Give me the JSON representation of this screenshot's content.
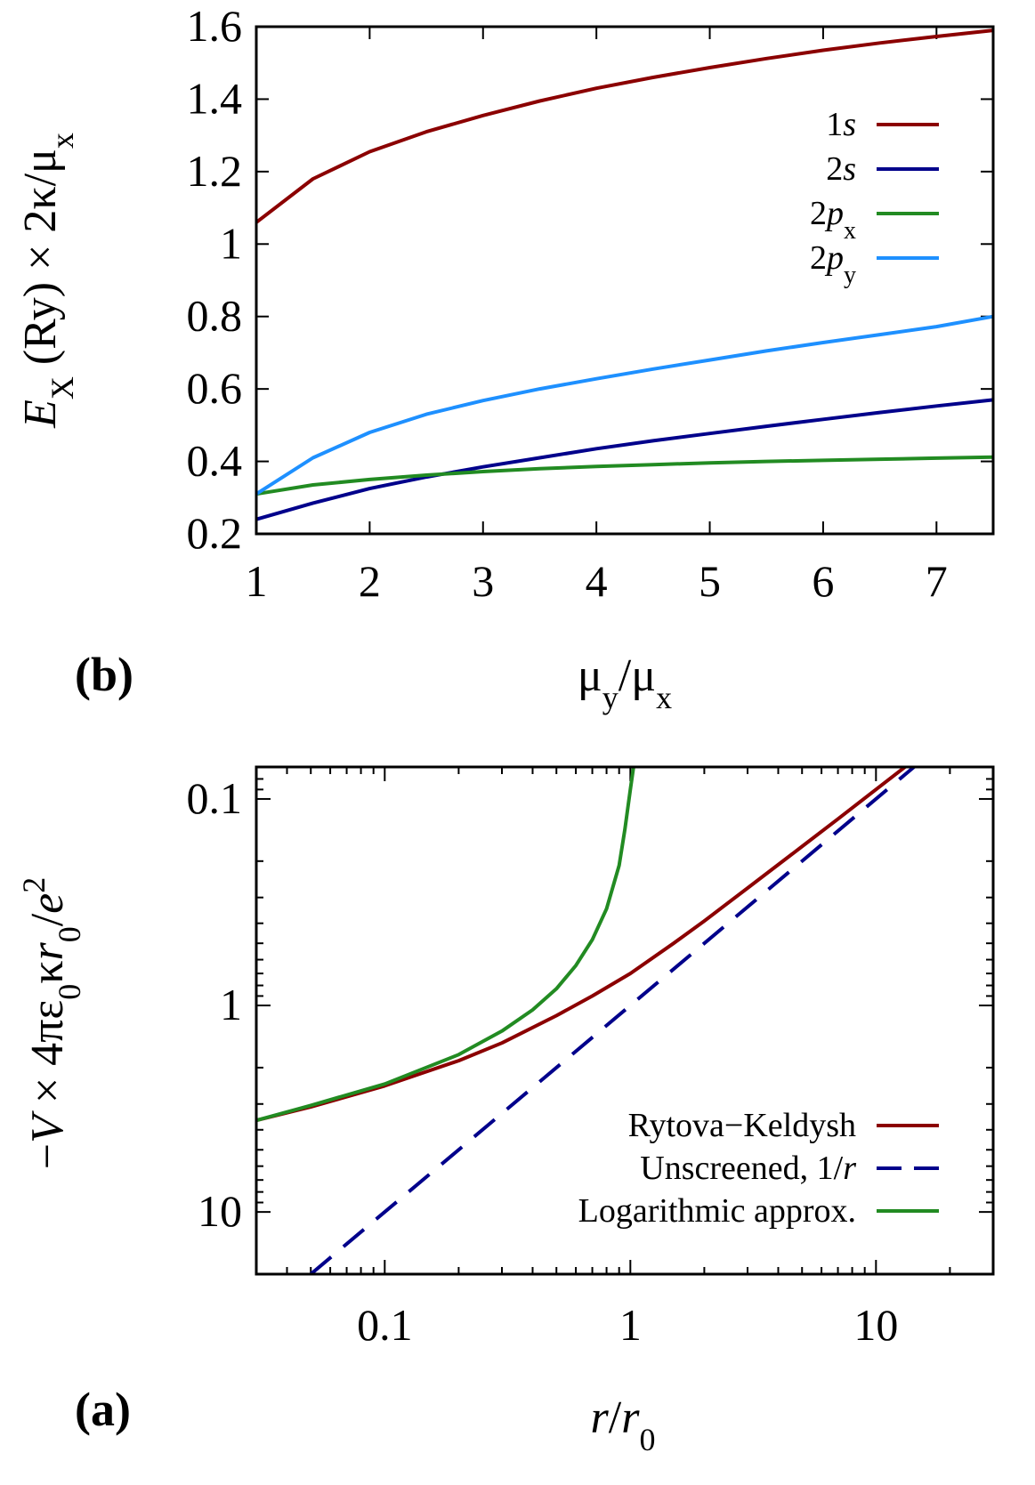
{
  "chart_data": [
    {
      "panel": "(b)",
      "type": "line",
      "xlabel_html": "μ<tspan baseline-shift='sub' font-size='36'>y</tspan>/μ<tspan baseline-shift='sub' font-size='36'>x</tspan>",
      "xlabel": "μy/μx",
      "ylabel": "EX (Ry) × 2κ/μx",
      "xlim": [
        1,
        7.5
      ],
      "ylim": [
        0.2,
        1.6
      ],
      "xticks": [
        1,
        2,
        3,
        4,
        5,
        6,
        7
      ],
      "xtick_labels": [
        "1",
        "2",
        "3",
        "4",
        "5",
        "6",
        "7"
      ],
      "yticks": [
        0.2,
        0.4,
        0.6,
        0.8,
        1.0,
        1.2,
        1.4,
        1.6
      ],
      "ytick_labels": [
        "0.2",
        "0.4",
        "0.6",
        "0.8",
        "1",
        "1.2",
        "1.4",
        "1.6"
      ],
      "legend_position": "top-right",
      "series": [
        {
          "name": "1s",
          "color": "#8b0000",
          "x": [
            1,
            1.5,
            2,
            2.5,
            3,
            3.5,
            4,
            4.5,
            5,
            5.5,
            6,
            6.5,
            7,
            7.5
          ],
          "y": [
            1.06,
            1.18,
            1.255,
            1.31,
            1.355,
            1.395,
            1.43,
            1.46,
            1.487,
            1.512,
            1.535,
            1.555,
            1.573,
            1.59
          ]
        },
        {
          "name": "2s",
          "color": "#00008b",
          "x": [
            1,
            1.5,
            2,
            2.5,
            3,
            3.5,
            4,
            4.5,
            5,
            5.5,
            6,
            6.5,
            7,
            7.5
          ],
          "y": [
            0.24,
            0.285,
            0.325,
            0.357,
            0.385,
            0.41,
            0.435,
            0.457,
            0.477,
            0.497,
            0.516,
            0.535,
            0.553,
            0.57
          ]
        },
        {
          "name": "2px",
          "color": "#228b22",
          "x": [
            1,
            1.5,
            2,
            2.5,
            3,
            3.5,
            4,
            4.5,
            5,
            5.5,
            6,
            6.5,
            7,
            7.5
          ],
          "y": [
            0.31,
            0.335,
            0.35,
            0.362,
            0.372,
            0.38,
            0.386,
            0.391,
            0.396,
            0.4,
            0.403,
            0.406,
            0.409,
            0.412
          ]
        },
        {
          "name": "2py",
          "color": "#1e90ff",
          "x": [
            1,
            1.5,
            2,
            2.5,
            3,
            3.5,
            4,
            4.5,
            5,
            5.5,
            6,
            6.5,
            7,
            7.5
          ],
          "y": [
            0.31,
            0.41,
            0.48,
            0.53,
            0.568,
            0.6,
            0.628,
            0.655,
            0.68,
            0.705,
            0.728,
            0.75,
            0.772,
            0.8
          ]
        }
      ]
    },
    {
      "panel": "(a)",
      "type": "line",
      "xlabel": "r/r0",
      "ylabel": "−V × 4πε0κr0/e2",
      "xscale": "log",
      "yscale": "log",
      "y_inverted": true,
      "xlim": [
        0.03,
        30
      ],
      "ylim": [
        0.07,
        20
      ],
      "xticks": [
        0.1,
        1,
        10
      ],
      "xtick_labels": [
        "0.1",
        "1",
        "10"
      ],
      "yticks": [
        0.1,
        1,
        10
      ],
      "ytick_labels": [
        "0.1",
        "1",
        "10"
      ],
      "legend_position": "bottom-right",
      "series": [
        {
          "name": "Rytova−Keldysh",
          "color": "#8b0000",
          "dash": "solid",
          "x": [
            0.03,
            0.05,
            0.1,
            0.2,
            0.3,
            0.5,
            0.7,
            1,
            1.5,
            2,
            3,
            5,
            7,
            10,
            14
          ],
          "y": [
            3.6,
            3.1,
            2.45,
            1.85,
            1.52,
            1.12,
            0.9,
            0.7,
            0.5,
            0.39,
            0.27,
            0.17,
            0.125,
            0.09,
            0.066
          ]
        },
        {
          "name": "Unscreened, 1/r",
          "color": "#00008b",
          "dash": "dashed",
          "x": [
            0.05,
            15
          ],
          "y": [
            20,
            0.0667
          ]
        },
        {
          "name": "Logarithmic approx.",
          "color": "#228b22",
          "dash": "solid",
          "x": [
            0.03,
            0.05,
            0.1,
            0.2,
            0.3,
            0.4,
            0.5,
            0.6,
            0.7,
            0.8,
            0.9,
            0.95,
            1.0,
            1.03
          ],
          "y": [
            3.6,
            3.05,
            2.4,
            1.73,
            1.33,
            1.05,
            0.83,
            0.64,
            0.48,
            0.34,
            0.21,
            0.14,
            0.09,
            0.07
          ]
        }
      ]
    }
  ]
}
